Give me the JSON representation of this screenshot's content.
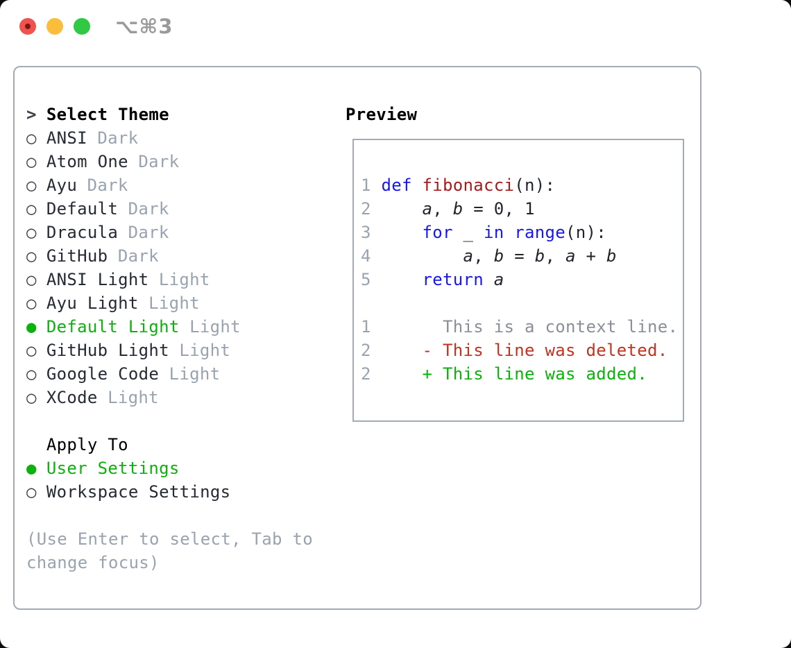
{
  "window": {
    "shortcut": "⌥⌘3"
  },
  "icons": {
    "focus_caret": ">",
    "selected_radio": "●",
    "unselected_radio": "○",
    "close_icon": "traffic-light-red",
    "minimize_icon": "traffic-light-yellow",
    "zoom_icon": "traffic-light-green"
  },
  "colors": {
    "selection_green": "#0bb20b",
    "keyword_blue": "#1717ee",
    "function_red": "#a51c1c",
    "deleted_red": "#c3321f",
    "added_green": "#0bb20b",
    "muted_gray": "#99a3af",
    "context_gray": "#8a8f98",
    "text_dark": "#262b33",
    "border_gray": "#a2abb5",
    "traffic_red": "#f0524d",
    "traffic_yellow": "#fbbd3c",
    "traffic_green": "#2fc943"
  },
  "theme_list": {
    "title": "Select Theme",
    "items": [
      {
        "name": "ANSI",
        "variant": "Dark",
        "selected": false
      },
      {
        "name": "Atom One",
        "variant": "Dark",
        "selected": false
      },
      {
        "name": "Ayu",
        "variant": "Dark",
        "selected": false
      },
      {
        "name": "Default",
        "variant": "Dark",
        "selected": false
      },
      {
        "name": "Dracula",
        "variant": "Dark",
        "selected": false
      },
      {
        "name": "GitHub",
        "variant": "Dark",
        "selected": false
      },
      {
        "name": "ANSI Light",
        "variant": "Light",
        "selected": false
      },
      {
        "name": "Ayu Light",
        "variant": "Light",
        "selected": false
      },
      {
        "name": "Default Light",
        "variant": "Light",
        "selected": true
      },
      {
        "name": "GitHub Light",
        "variant": "Light",
        "selected": false
      },
      {
        "name": "Google Code",
        "variant": "Light",
        "selected": false
      },
      {
        "name": "XCode",
        "variant": "Light",
        "selected": false
      }
    ]
  },
  "apply_to": {
    "title": "Apply To",
    "options": [
      {
        "label": "User Settings",
        "selected": true
      },
      {
        "label": "Workspace Settings",
        "selected": false
      }
    ]
  },
  "help": {
    "line1": "(Use Enter to select, Tab to",
    "line2": "change focus)"
  },
  "preview": {
    "title": "Preview",
    "lines": [
      [
        [
          "num",
          "1"
        ],
        [
          "pl",
          " "
        ],
        [
          "kw",
          "def"
        ],
        [
          "pl",
          " "
        ],
        [
          "fn",
          "fibonacci"
        ],
        [
          "pl",
          "(n):"
        ]
      ],
      [
        [
          "num",
          "2"
        ],
        [
          "pl",
          "     "
        ],
        [
          "var",
          "a"
        ],
        [
          "pl",
          ", "
        ],
        [
          "var",
          "b"
        ],
        [
          "pl",
          " = 0, 1"
        ]
      ],
      [
        [
          "num",
          "3"
        ],
        [
          "pl",
          "     "
        ],
        [
          "kw",
          "for"
        ],
        [
          "pl",
          " _ "
        ],
        [
          "kw",
          "in"
        ],
        [
          "pl",
          " "
        ],
        [
          "kw",
          "range"
        ],
        [
          "pl",
          "(n):"
        ]
      ],
      [
        [
          "num",
          "4"
        ],
        [
          "pl",
          "         "
        ],
        [
          "var",
          "a"
        ],
        [
          "pl",
          ", "
        ],
        [
          "var",
          "b"
        ],
        [
          "pl",
          " = "
        ],
        [
          "var",
          "b"
        ],
        [
          "pl",
          ", "
        ],
        [
          "var",
          "a"
        ],
        [
          "pl",
          " + "
        ],
        [
          "var",
          "b"
        ]
      ],
      [
        [
          "num",
          "5"
        ],
        [
          "pl",
          "     "
        ],
        [
          "kw",
          "return"
        ],
        [
          "pl",
          " "
        ],
        [
          "var",
          "a"
        ]
      ],
      [],
      [
        [
          "num",
          "1"
        ],
        [
          "ctx",
          "       This is a context line."
        ]
      ],
      [
        [
          "num",
          "2"
        ],
        [
          "pl",
          "     "
        ],
        [
          "del",
          "- This line was deleted."
        ]
      ],
      [
        [
          "num",
          "2"
        ],
        [
          "pl",
          "     "
        ],
        [
          "add",
          "+ This line was added."
        ]
      ]
    ]
  }
}
